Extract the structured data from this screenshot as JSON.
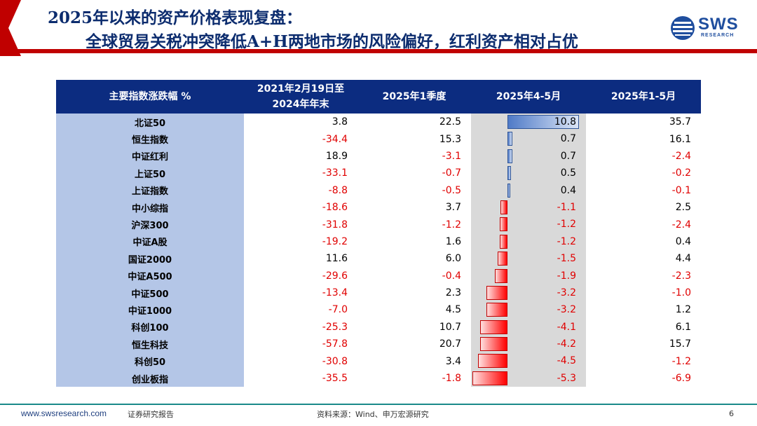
{
  "header": {
    "title_line1": "2025年以来的资产价格表现复盘：",
    "title_line2": "全球贸易关税冲突降低A+H两地市场的风险偏好，红利资产相对占优",
    "logo_text": "SWS",
    "logo_sub": "RESEARCH",
    "accent_color": "#c00000",
    "title_color": "#0c2c6e"
  },
  "table": {
    "headers": [
      "主要指数涨跌幅 %",
      "2021年2月19日至\n2024年年末",
      "2025年1季度",
      "2025年4-5月",
      "2025年1-5月"
    ],
    "rows": [
      {
        "name": "北证50",
        "v1": "3.8",
        "v2": "22.5",
        "v3": "10.8",
        "v4": "35.7"
      },
      {
        "name": "恒生指数",
        "v1": "-34.4",
        "v2": "15.3",
        "v3": "0.7",
        "v4": "16.1"
      },
      {
        "name": "中证红利",
        "v1": "18.9",
        "v2": "-3.1",
        "v3": "0.7",
        "v4": "-2.4"
      },
      {
        "name": "上证50",
        "v1": "-33.1",
        "v2": "-0.7",
        "v3": "0.5",
        "v4": "-0.2"
      },
      {
        "name": "上证指数",
        "v1": "-8.8",
        "v2": "-0.5",
        "v3": "0.4",
        "v4": "-0.1"
      },
      {
        "name": "中小综指",
        "v1": "-18.6",
        "v2": "3.7",
        "v3": "-1.1",
        "v4": "2.5"
      },
      {
        "name": "沪深300",
        "v1": "-31.8",
        "v2": "-1.2",
        "v3": "-1.2",
        "v4": "-2.4"
      },
      {
        "name": "中证A股",
        "v1": "-19.2",
        "v2": "1.6",
        "v3": "-1.2",
        "v4": "0.4"
      },
      {
        "name": "国证2000",
        "v1": "11.6",
        "v2": "6.0",
        "v3": "-1.5",
        "v4": "4.4"
      },
      {
        "name": "中证A500",
        "v1": "-29.6",
        "v2": "-0.4",
        "v3": "-1.9",
        "v4": "-2.3"
      },
      {
        "name": "中证500",
        "v1": "-13.4",
        "v2": "2.3",
        "v3": "-3.2",
        "v4": "-1.0"
      },
      {
        "name": "中证1000",
        "v1": "-7.0",
        "v2": "4.5",
        "v3": "-3.2",
        "v4": "1.2"
      },
      {
        "name": "科创100",
        "v1": "-25.3",
        "v2": "10.7",
        "v3": "-4.1",
        "v4": "6.1"
      },
      {
        "name": "恒生科技",
        "v1": "-57.8",
        "v2": "20.7",
        "v3": "-4.2",
        "v4": "15.7"
      },
      {
        "name": "科创50",
        "v1": "-30.8",
        "v2": "3.4",
        "v3": "-4.5",
        "v4": "-1.2"
      },
      {
        "name": "创业板指",
        "v1": "-35.5",
        "v2": "-1.8",
        "v3": "-5.3",
        "v4": "-6.9"
      }
    ],
    "header_bg": "#0c2c80",
    "name_bg": "#b4c6e7",
    "negative_color": "#e00000",
    "bar_positive_color": "#4f7ac7",
    "bar_negative_color": "#ff0000"
  },
  "footer": {
    "url": "www.swsresearch.com",
    "report_type": "证券研究报告",
    "source": "资料来源：Wind、申万宏源研究",
    "page": "6"
  }
}
